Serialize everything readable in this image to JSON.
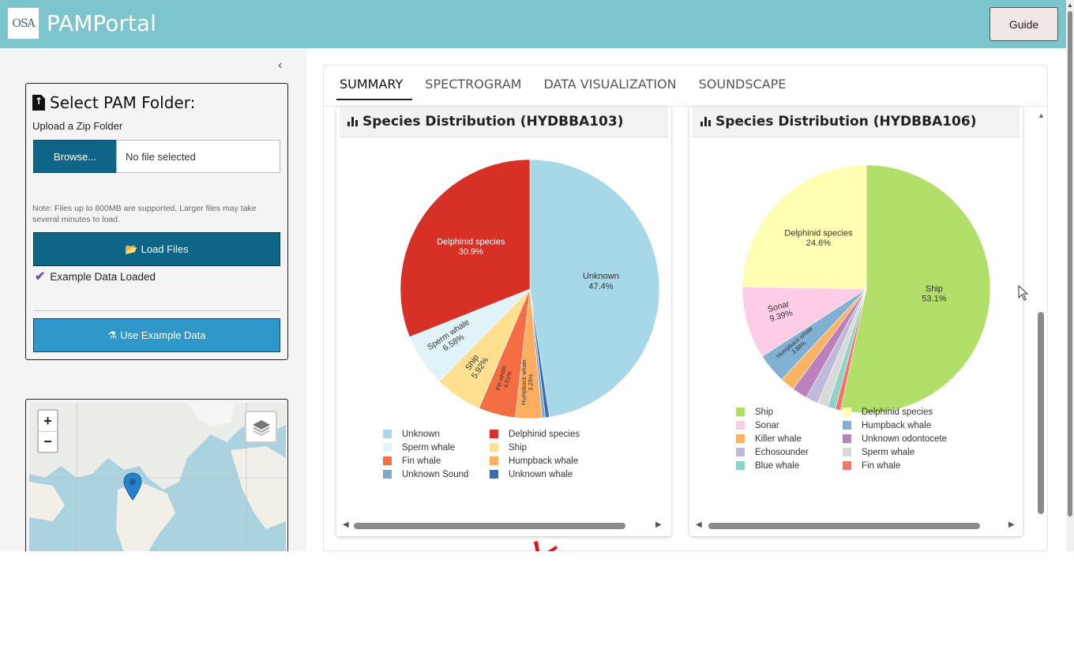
{
  "header": {
    "logo_text": "OSA",
    "title": "PAMPortal",
    "guide_label": "Guide"
  },
  "sidebar": {
    "collapse_icon": "chevron-left-icon",
    "panel_title": "Select PAM Folder:",
    "upload_label": "Upload a Zip Folder",
    "browse_label": "Browse...",
    "file_placeholder": "No file selected",
    "note": "Note: Files up to 800MB are supported. Larger files may take several minutes to load.",
    "load_label": "Load Files",
    "status": "Example Data Loaded",
    "example_label": "Use Example Data"
  },
  "map": {
    "zoom_in": "+",
    "zoom_out": "−"
  },
  "tabs": [
    {
      "label": "SUMMARY",
      "active": true
    },
    {
      "label": "SPECTROGRAM",
      "active": false
    },
    {
      "label": "DATA VISUALIZATION",
      "active": false
    },
    {
      "label": "SOUNDSCAPE",
      "active": false
    }
  ],
  "chart_data": [
    {
      "type": "pie",
      "title": "Species Distribution (HYDBBA103)",
      "slices": [
        {
          "label": "Unknown",
          "percent": 47.4,
          "color": "#a6d8e8",
          "text": "Unknown\n47.4%"
        },
        {
          "label": "Unknown whale",
          "percent": 0.5,
          "color": "#3b6cb4",
          "text": ""
        },
        {
          "label": "Unknown Sound",
          "percent": 0.4,
          "color": "#7aa8cf",
          "text": ""
        },
        {
          "label": "Humpback whale",
          "percent": 3.29,
          "color": "#fdae61",
          "text": "Humpback whale\n3.29%"
        },
        {
          "label": "Fin whale",
          "percent": 4.61,
          "color": "#f46d43",
          "text": "Fin whale\n4.61%"
        },
        {
          "label": "Ship",
          "percent": 5.92,
          "color": "#fee090",
          "text": "Ship\n5.92%"
        },
        {
          "label": "Sperm whale",
          "percent": 6.58,
          "color": "#e0f3f8",
          "text": "Sperm whale\n6.58%"
        },
        {
          "label": "Delphinid species",
          "percent": 30.9,
          "color": "#d73027",
          "text": "Delphinid species\n30.9%"
        }
      ],
      "legend": [
        {
          "label": "Unknown",
          "color": "#a6d8e8"
        },
        {
          "label": "Delphinid species",
          "color": "#d73027"
        },
        {
          "label": "Sperm whale",
          "color": "#e0f3f8"
        },
        {
          "label": "Ship",
          "color": "#fee090"
        },
        {
          "label": "Fin whale",
          "color": "#f46d43"
        },
        {
          "label": "Humpback whale",
          "color": "#fdae61"
        },
        {
          "label": "Unknown Sound",
          "color": "#7aa8cf"
        },
        {
          "label": "Unknown whale",
          "color": "#3b6cb4"
        }
      ]
    },
    {
      "type": "pie",
      "title": "Species Distribution (HYDBBA106)",
      "slices": [
        {
          "label": "Ship",
          "percent": 53.1,
          "color": "#b2df6a",
          "text": "Ship\n53.1%"
        },
        {
          "label": "Fin whale",
          "percent": 0.7,
          "color": "#f5756b",
          "text": ""
        },
        {
          "label": "Blue whale",
          "percent": 1.0,
          "color": "#8ed3c7",
          "text": ""
        },
        {
          "label": "Sperm whale",
          "percent": 1.4,
          "color": "#d9d9d9",
          "text": ""
        },
        {
          "label": "Echosounder",
          "percent": 1.6,
          "color": "#bebada",
          "text": ""
        },
        {
          "label": "Unknown odontocete",
          "percent": 2.0,
          "color": "#bc80bd",
          "text": ""
        },
        {
          "label": "Killer whale",
          "percent": 1.9,
          "color": "#fdb462",
          "text": ""
        },
        {
          "label": "Humpback whale",
          "percent": 3.88,
          "color": "#80b1d3",
          "text": "Humpback whale\n3.88%"
        },
        {
          "label": "Sonar",
          "percent": 9.39,
          "color": "#fccde5",
          "text": "Sonar\n9.39%"
        },
        {
          "label": "Delphinid species",
          "percent": 24.6,
          "color": "#ffffb3",
          "text": "Delphinid species\n24.6%"
        }
      ],
      "legend": [
        {
          "label": "Ship",
          "color": "#b2df6a"
        },
        {
          "label": "Delphinid species",
          "color": "#ffffb3"
        },
        {
          "label": "Sonar",
          "color": "#fccde5"
        },
        {
          "label": "Humpback whale",
          "color": "#80b1d3"
        },
        {
          "label": "Killer whale",
          "color": "#fdb462"
        },
        {
          "label": "Unknown odontocete",
          "color": "#bc80bd"
        },
        {
          "label": "Echosounder",
          "color": "#bebada"
        },
        {
          "label": "Sperm whale",
          "color": "#d9d9d9"
        },
        {
          "label": "Blue whale",
          "color": "#8ed3c7"
        },
        {
          "label": "Fin whale",
          "color": "#f5756b"
        }
      ]
    }
  ]
}
